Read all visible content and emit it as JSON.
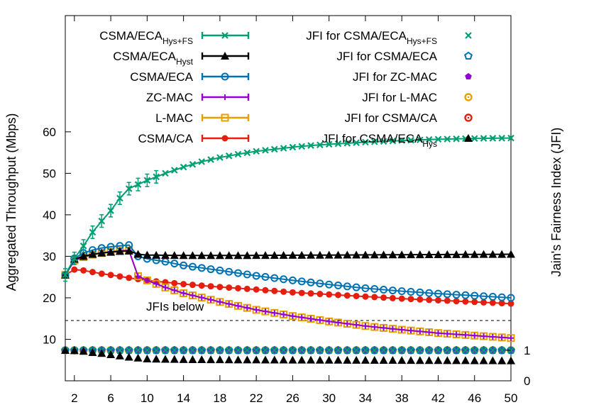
{
  "chart_data": {
    "type": "line",
    "ylabel": "Aggregated Throughput (Mbps)",
    "y2label": "Jain's Fairness Index (JFI)",
    "annotation": "JFIs below",
    "xlim": [
      1,
      50
    ],
    "x_ticks": [
      2,
      6,
      10,
      14,
      18,
      22,
      26,
      30,
      34,
      38,
      42,
      46,
      50
    ],
    "ylim": [
      0,
      88
    ],
    "y_ticks": [
      10,
      20,
      30,
      40,
      50,
      60
    ],
    "y2_ticks": [
      0,
      1
    ],
    "jfi_baseline": 0,
    "legend_position": "top",
    "series": [
      {
        "label_main": "CSMA/ECA",
        "label_sub": "Hys+FS",
        "color": "#009e73",
        "marker": "x",
        "points": [
          [
            1,
            25.5
          ],
          [
            2,
            29.5
          ],
          [
            3,
            32.5
          ],
          [
            4,
            35.8
          ],
          [
            5,
            38.5
          ],
          [
            6,
            41
          ],
          [
            7,
            44
          ],
          [
            8,
            46.3
          ],
          [
            9,
            47.3
          ],
          [
            10,
            48.3
          ],
          [
            12,
            50
          ],
          [
            14,
            51.5
          ],
          [
            16,
            52.8
          ],
          [
            18,
            53.8
          ],
          [
            20,
            54.6
          ],
          [
            22,
            55.3
          ],
          [
            24,
            55.8
          ],
          [
            26,
            56.3
          ],
          [
            28,
            56.7
          ],
          [
            30,
            57
          ],
          [
            34,
            57.5
          ],
          [
            38,
            57.9
          ],
          [
            42,
            58.2
          ],
          [
            46,
            58.4
          ],
          [
            50,
            58.5
          ]
        ]
      },
      {
        "label_main": "CSMA/ECA",
        "label_sub": "Hyst",
        "color": "#000000",
        "marker": "triangle",
        "points": [
          [
            1,
            25.5
          ],
          [
            2,
            29.3
          ],
          [
            3,
            30
          ],
          [
            4,
            30.5
          ],
          [
            5,
            30.8
          ],
          [
            6,
            31
          ],
          [
            7,
            31.2
          ],
          [
            8,
            31.3
          ],
          [
            9,
            30.5
          ],
          [
            10,
            30.3
          ],
          [
            14,
            30.2
          ],
          [
            20,
            30.2
          ],
          [
            30,
            30.3
          ],
          [
            40,
            30.4
          ],
          [
            50,
            30.5
          ]
        ]
      },
      {
        "label_main": "CSMA/ECA",
        "label_sub": "",
        "color": "#0072b2",
        "marker": "circle-open",
        "points": [
          [
            1,
            25.5
          ],
          [
            2,
            29.5
          ],
          [
            3,
            30.8
          ],
          [
            4,
            31.5
          ],
          [
            5,
            32
          ],
          [
            6,
            32.3
          ],
          [
            7,
            32.5
          ],
          [
            8,
            32.7
          ],
          [
            9,
            30
          ],
          [
            10,
            29.4
          ],
          [
            12,
            28.7
          ],
          [
            14,
            27.8
          ],
          [
            18,
            26.6
          ],
          [
            22,
            25.3
          ],
          [
            26,
            24.2
          ],
          [
            30,
            23.2
          ],
          [
            34,
            22.3
          ],
          [
            38,
            21.6
          ],
          [
            42,
            21
          ],
          [
            46,
            20.5
          ],
          [
            50,
            20
          ]
        ]
      },
      {
        "label_main": "ZC-MAC",
        "label_sub": "",
        "color": "#9400d3",
        "marker": "plus",
        "points": [
          [
            1,
            25.5
          ],
          [
            2,
            29
          ],
          [
            3,
            29.8
          ],
          [
            4,
            30.4
          ],
          [
            5,
            30.8
          ],
          [
            6,
            31.1
          ],
          [
            7,
            31.3
          ],
          [
            8,
            31.4
          ],
          [
            9,
            25.2
          ],
          [
            10,
            24.2
          ],
          [
            12,
            22.5
          ],
          [
            14,
            21.1
          ],
          [
            18,
            19
          ],
          [
            22,
            17.1
          ],
          [
            26,
            15.6
          ],
          [
            30,
            14.3
          ],
          [
            34,
            13.2
          ],
          [
            38,
            12.3
          ],
          [
            42,
            11.5
          ],
          [
            46,
            10.9
          ],
          [
            50,
            10.3
          ]
        ]
      },
      {
        "label_main": "L-MAC",
        "label_sub": "",
        "color": "#e69f00",
        "marker": "square-open",
        "points": [
          [
            1,
            25.5
          ],
          [
            2,
            29
          ],
          [
            3,
            29.8
          ],
          [
            4,
            30.4
          ],
          [
            5,
            30.8
          ],
          [
            6,
            31.1
          ],
          [
            7,
            31.3
          ],
          [
            8,
            31.4
          ],
          [
            9,
            25.2
          ],
          [
            10,
            24.2
          ],
          [
            12,
            22.5
          ],
          [
            14,
            21.1
          ],
          [
            18,
            19
          ],
          [
            22,
            17.1
          ],
          [
            26,
            15.6
          ],
          [
            30,
            14.3
          ],
          [
            34,
            13.2
          ],
          [
            38,
            12.3
          ],
          [
            42,
            11.5
          ],
          [
            46,
            10.9
          ],
          [
            50,
            10.3
          ]
        ]
      },
      {
        "label_main": "CSMA/CA",
        "label_sub": "",
        "color": "#e51e10",
        "marker": "circle-filled",
        "points": [
          [
            1,
            25.5
          ],
          [
            2,
            26.8
          ],
          [
            3,
            26.6
          ],
          [
            4,
            26.2
          ],
          [
            5,
            25.8
          ],
          [
            6,
            25.5
          ],
          [
            8,
            24.8
          ],
          [
            10,
            24.2
          ],
          [
            14,
            23.3
          ],
          [
            18,
            22.6
          ],
          [
            22,
            22
          ],
          [
            26,
            21.3
          ],
          [
            30,
            20.8
          ],
          [
            34,
            20.3
          ],
          [
            38,
            19.8
          ],
          [
            42,
            19.4
          ],
          [
            46,
            19
          ],
          [
            50,
            18.6
          ]
        ]
      }
    ],
    "jfi_series": [
      {
        "label_main": "JFI for CSMA/ECA",
        "label_sub": "Hys+FS",
        "color": "#009e73",
        "marker": "x",
        "points": [
          [
            1,
            1
          ],
          [
            50,
            1
          ]
        ]
      },
      {
        "label_main": "JFI for CSMA/ECA",
        "label_sub": "",
        "color": "#0072b2",
        "marker": "pentagon-open",
        "points": [
          [
            1,
            1
          ],
          [
            50,
            1
          ]
        ]
      },
      {
        "label_main": "JFI for ZC-MAC",
        "label_sub": "",
        "color": "#9400d3",
        "marker": "pentagon-filled",
        "points": [
          [
            1,
            1
          ],
          [
            50,
            1
          ]
        ]
      },
      {
        "label_main": "JFI for L-MAC",
        "label_sub": "",
        "color": "#e69f00",
        "marker": "circle-dot",
        "points": [
          [
            1,
            1
          ],
          [
            50,
            1
          ]
        ]
      },
      {
        "label_main": "JFI for CSMA/CA",
        "label_sub": "",
        "color": "#e51e10",
        "marker": "circle-dot",
        "points": [
          [
            1,
            1
          ],
          [
            50,
            1
          ]
        ]
      },
      {
        "label_main": "JFI for CSMA/ECA",
        "label_sub": "Hys",
        "color": "#000000",
        "marker": "triangle",
        "points": [
          [
            1,
            1
          ],
          [
            2,
            0.99
          ],
          [
            3,
            0.97
          ],
          [
            4,
            0.93
          ],
          [
            5,
            0.9
          ],
          [
            6,
            0.86
          ],
          [
            7,
            0.82
          ],
          [
            8,
            0.78
          ],
          [
            9,
            0.75
          ],
          [
            10,
            0.72
          ],
          [
            14,
            0.7
          ],
          [
            20,
            0.69
          ],
          [
            30,
            0.68
          ],
          [
            40,
            0.67
          ],
          [
            50,
            0.66
          ]
        ]
      }
    ]
  }
}
